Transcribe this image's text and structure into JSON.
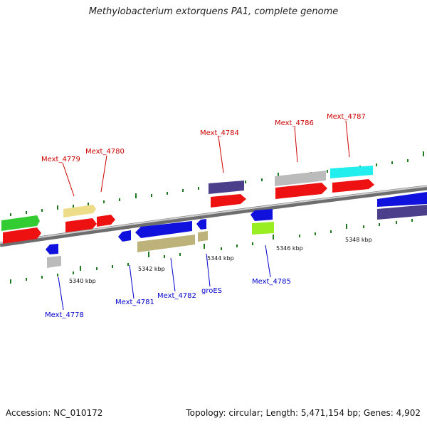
{
  "title": "Methylobacterium extorquens PA1, complete genome",
  "footer": {
    "accession": "Accession: NC_010172",
    "summary": "Topology: circular; Length: 5,471,154 bp; Genes: 4,902"
  },
  "colors": {
    "backbone": "#8a8a8a",
    "tick": "#1f7a1f",
    "label_top": "#cc0000",
    "label_bottom": "#0000cc"
  },
  "scale_labels": [
    "5340 kbp",
    "5342 kbp",
    "5344 kbp",
    "5346 kbp",
    "5348 kbp"
  ],
  "gene_labels_top": [
    "Mext_4779",
    "Mext_4780",
    "Mext_4784",
    "Mext_4786",
    "Mext_4787"
  ],
  "gene_labels_bottom": [
    "Mext_4778",
    "Mext_4781",
    "Mext_4782",
    "groES",
    "Mext_4785"
  ]
}
